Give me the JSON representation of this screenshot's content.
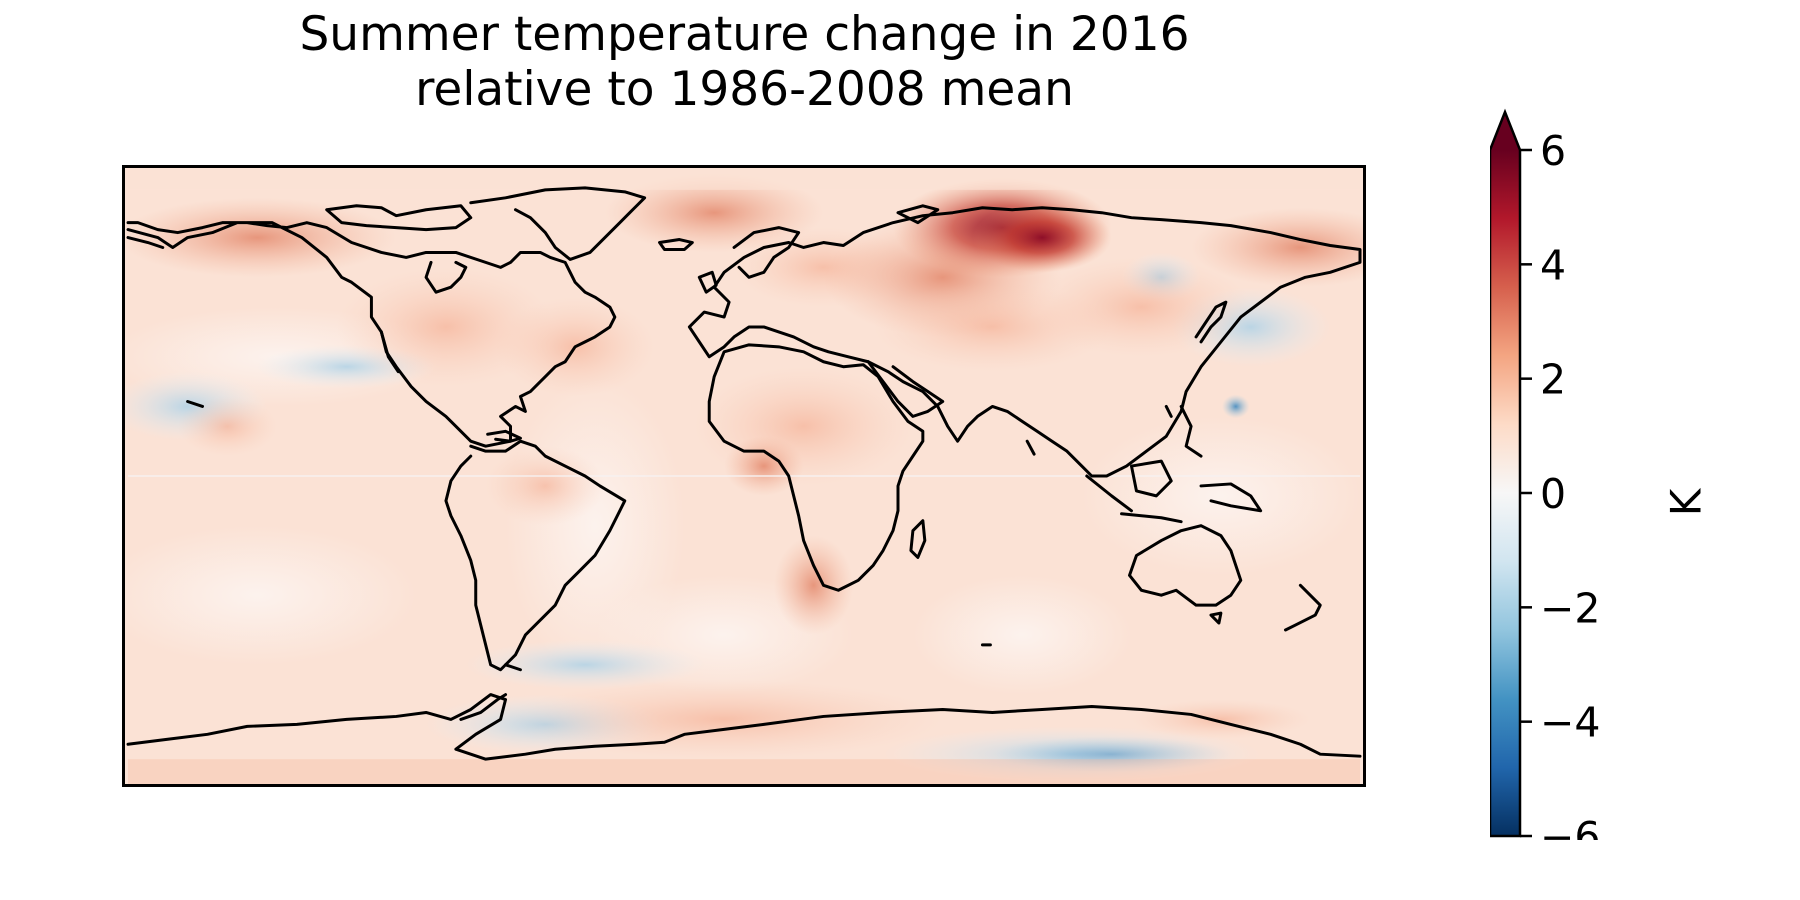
{
  "title_line_1": "Summer temperature change in 2016",
  "title_line_2": "relative to 1986-2008 mean",
  "colorbar": {
    "label": "K",
    "min": -6,
    "max": 6,
    "extend": "max",
    "colormap": "RdBu_r",
    "ticks": [
      6,
      4,
      2,
      0,
      -2,
      -4,
      -6
    ],
    "tick_labels": [
      "6",
      "4",
      "2",
      "0",
      "−2",
      "−4",
      "−6"
    ],
    "colors": [
      "#053061",
      "#2166ac",
      "#4393c3",
      "#92c5de",
      "#d1e5f0",
      "#f7f7f7",
      "#fddbc7",
      "#f4a582",
      "#d6604d",
      "#b2182b",
      "#67001f"
    ]
  },
  "map": {
    "projection": "PlateCarree",
    "coastlines": true,
    "background_anomaly_K": 0.7,
    "notable_anomalies": [
      {
        "region": "Western Siberia / Kara Sea",
        "anomaly_K": 5.5
      },
      {
        "region": "Eastern Siberia / Chukotka",
        "anomaly_K": 3.5
      },
      {
        "region": "Central Asia",
        "anomaly_K": 2.0
      },
      {
        "region": "Greenland",
        "anomaly_K": 2.0
      },
      {
        "region": "North America",
        "anomaly_K": 1.5
      },
      {
        "region": "Southern Africa",
        "anomaly_K": 2.0
      },
      {
        "region": "Western Pacific",
        "anomaly_K": -2.5
      },
      {
        "region": "East Antarctica",
        "anomaly_K": -1.5
      },
      {
        "region": "Southern Ocean / Weddell Sea",
        "anomaly_K": -1.0
      },
      {
        "region": "North Pacific",
        "anomaly_K": -0.8
      }
    ]
  }
}
